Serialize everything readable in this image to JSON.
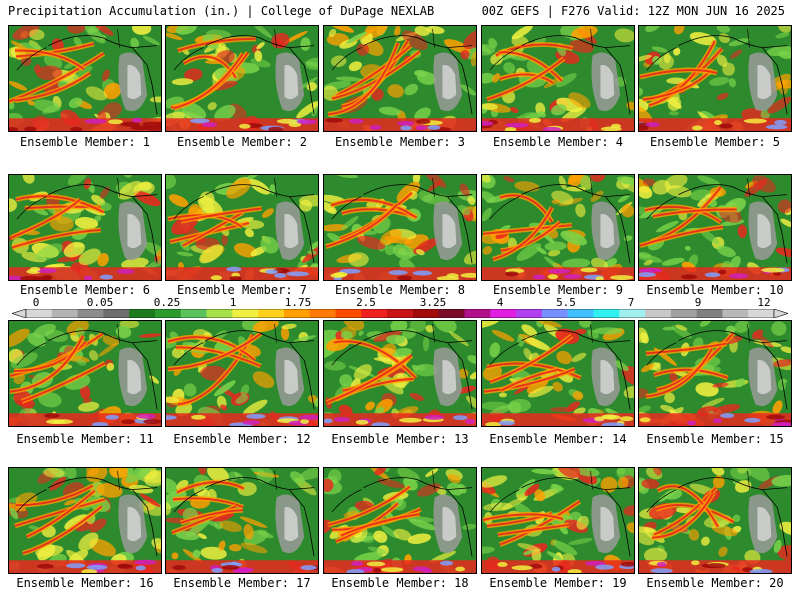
{
  "header": {
    "left_title": "Precipitation Accumulation (in.) | College of DuPage NEXLAB",
    "right_title": "00Z GEFS | F276 Valid: 12Z MON JUN 16 2025"
  },
  "colorbar": {
    "tick_labels": [
      "0",
      "0.05",
      "0.25",
      "1",
      "1.75",
      "2.5",
      "3.25",
      "4",
      "5.5",
      "7",
      "9",
      "12"
    ],
    "colors": [
      "#d8d8d8",
      "#b4b4b4",
      "#8c8c8c",
      "#6e6e6e",
      "#1e7a1e",
      "#2d9a2d",
      "#5cc25c",
      "#a6e04a",
      "#f0f040",
      "#ffd21e",
      "#ffa000",
      "#ff7a00",
      "#ff4a00",
      "#f02020",
      "#c81414",
      "#a00a0a",
      "#7a0a2a",
      "#b0108a",
      "#e020e0",
      "#b040f0",
      "#7890ff",
      "#40c0ff",
      "#30f0f0",
      "#a0f0f0",
      "#c8c8c8",
      "#a0a0a0",
      "#808080",
      "#b8b8b8",
      "#d8d8d8"
    ]
  },
  "map_colors": {
    "land_green": "#2d8a2d",
    "light_green": "#7ad34a",
    "yellow": "#f0f040",
    "orange": "#ffa000",
    "red": "#e8281e",
    "dark_red": "#a00a0a",
    "magenta": "#d020c0",
    "blue": "#7fa0ff",
    "gray": "#9a9a9a",
    "light_gray": "#d0d0d0"
  },
  "panels": [
    {
      "label": "Ensemble Member: 1"
    },
    {
      "label": "Ensemble Member: 2"
    },
    {
      "label": "Ensemble Member: 3"
    },
    {
      "label": "Ensemble Member: 4"
    },
    {
      "label": "Ensemble Member: 5"
    },
    {
      "label": "Ensemble Member: 6"
    },
    {
      "label": "Ensemble Member: 7"
    },
    {
      "label": "Ensemble Member: 8"
    },
    {
      "label": "Ensemble Member: 9"
    },
    {
      "label": "Ensemble Member: 10"
    },
    {
      "label": "Ensemble Member: 11"
    },
    {
      "label": "Ensemble Member: 12"
    },
    {
      "label": "Ensemble Member: 13"
    },
    {
      "label": "Ensemble Member: 14"
    },
    {
      "label": "Ensemble Member: 15"
    },
    {
      "label": "Ensemble Member: 16"
    },
    {
      "label": "Ensemble Member: 17"
    },
    {
      "label": "Ensemble Member: 18"
    },
    {
      "label": "Ensemble Member: 19"
    },
    {
      "label": "Ensemble Member: 20"
    }
  ]
}
